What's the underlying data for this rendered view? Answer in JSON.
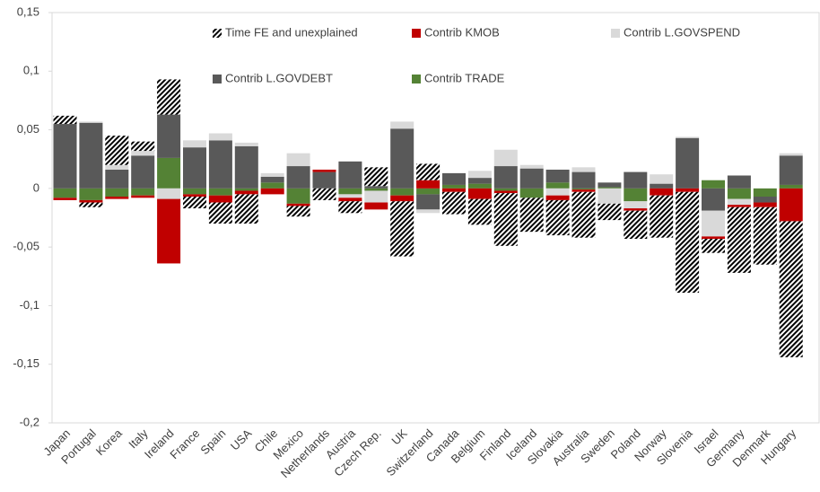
{
  "chart_data": {
    "type": "bar",
    "stacked": true,
    "categories": [
      "Japan",
      "Portugal",
      "Korea",
      "Italy",
      "Ireland",
      "France",
      "Spain",
      "USA",
      "Chile",
      "Mexico",
      "Netherlands",
      "Austria",
      "Czech Rep.",
      "UK",
      "Switzerland",
      "Canada",
      "Belgium",
      "Finland",
      "Iceland",
      "Slovakia",
      "Australia",
      "Sweden",
      "Poland",
      "Norway",
      "Slovenia",
      "Israel",
      "Germany",
      "Denmark",
      "Hungary"
    ],
    "series": [
      {
        "name": "Time FE and unexplained",
        "color": "#000000",
        "hatch": true,
        "values": [
          0.007,
          -0.004,
          0.025,
          0.008,
          0.03,
          -0.01,
          -0.018,
          -0.025,
          0,
          -0.009,
          -0.01,
          -0.01,
          0.016,
          -0.047,
          0.014,
          -0.019,
          -0.022,
          -0.045,
          -0.029,
          -0.03,
          -0.039,
          -0.014,
          -0.024,
          -0.036,
          -0.086,
          -0.012,
          -0.056,
          -0.049,
          -0.116
        ]
      },
      {
        "name": "Contrib KMOB",
        "color": "#c00000",
        "values": [
          -0.002,
          -0.002,
          -0.002,
          -0.002,
          -0.055,
          -0.002,
          -0.006,
          -0.003,
          -0.005,
          -0.002,
          0.002,
          -0.003,
          -0.006,
          -0.005,
          0.007,
          -0.003,
          -0.009,
          -0.002,
          0,
          -0.004,
          -0.002,
          0,
          -0.002,
          -0.006,
          -0.003,
          -0.002,
          -0.002,
          -0.004,
          -0.028
        ]
      },
      {
        "name": "Contrib L.GOVSPEND",
        "color": "#d9d9d9",
        "values": [
          0,
          0.001,
          0.004,
          0.004,
          -0.009,
          0.006,
          0.006,
          0.003,
          0.003,
          0.011,
          0,
          -0.003,
          -0.01,
          0.006,
          -0.003,
          0,
          0.006,
          0.014,
          0.003,
          -0.006,
          0.004,
          -0.013,
          -0.006,
          0.008,
          0.001,
          -0.022,
          -0.005,
          0,
          0.002
        ]
      },
      {
        "name": "Contrib L.GOVDEBT",
        "color": "#595959",
        "values": [
          0.055,
          0.056,
          0.016,
          0.028,
          0.037,
          0.035,
          0.041,
          0.036,
          0.005,
          0.019,
          0.014,
          0.023,
          0.002,
          0.051,
          -0.013,
          0.01,
          0.005,
          0.019,
          0.017,
          0.011,
          0.014,
          0.004,
          0.014,
          0.004,
          0.043,
          -0.019,
          0.011,
          -0.005,
          0.025
        ]
      },
      {
        "name": "Contrib TRADE",
        "color": "#548235",
        "values": [
          -0.008,
          -0.01,
          -0.007,
          -0.006,
          0.026,
          -0.005,
          -0.006,
          -0.002,
          0.005,
          -0.013,
          0,
          -0.005,
          -0.002,
          -0.006,
          -0.005,
          0.003,
          0.004,
          -0.002,
          -0.008,
          0.005,
          -0.001,
          0.001,
          -0.011,
          0,
          0,
          0.007,
          -0.009,
          -0.007,
          0.003
        ]
      }
    ],
    "ylim": [
      -0.2,
      0.15
    ],
    "yticks": [
      {
        "value": -0.2,
        "label": "-0,2"
      },
      {
        "value": -0.15,
        "label": "-0,15"
      },
      {
        "value": -0.1,
        "label": "-0,1"
      },
      {
        "value": -0.05,
        "label": "-0,05"
      },
      0,
      {
        "value": 0.05,
        "label": "0,05"
      },
      {
        "value": 0.1,
        "label": "0,1"
      },
      {
        "value": 0.15,
        "label": "0,15"
      }
    ],
    "grid": false
  }
}
